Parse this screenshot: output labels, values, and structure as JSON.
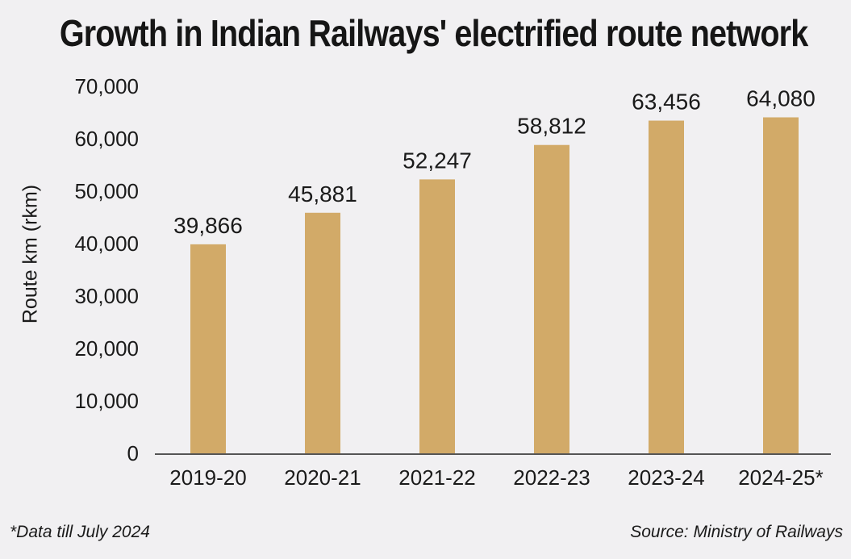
{
  "title": "Growth in Indian Railways' electrified route network",
  "footnote": "*Data till July 2024",
  "source": "Source: Ministry of Railways",
  "chart_data": {
    "type": "bar",
    "categories": [
      "2019-20",
      "2020-21",
      "2021-22",
      "2022-23",
      "2023-24",
      "2024-25*"
    ],
    "values": [
      39866,
      45881,
      52247,
      58812,
      63456,
      64080
    ],
    "value_labels": [
      "39,866",
      "45,881",
      "52,247",
      "58,812",
      "63,456",
      "64,080"
    ],
    "ylabel": "Route km (rkm)",
    "xlabel": "",
    "ylim": [
      0,
      70000
    ],
    "yticks": [
      0,
      10000,
      20000,
      30000,
      40000,
      50000,
      60000,
      70000
    ],
    "ytick_labels": [
      "0",
      "10,000",
      "20,000",
      "30,000",
      "40,000",
      "50,000",
      "60,000",
      "70,000"
    ],
    "grid": false,
    "bar_color": "#d2aa68",
    "axis_color": "#555555"
  }
}
